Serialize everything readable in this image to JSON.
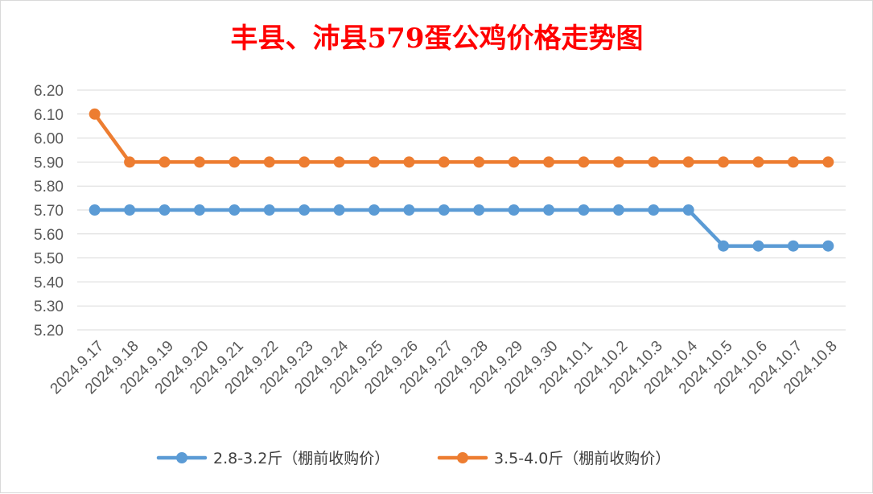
{
  "chart_data": {
    "type": "line",
    "title": "丰县、沛县579蛋公鸡价格走势图",
    "xlabel": "",
    "ylabel": "",
    "categories": [
      "2024.9.17",
      "2024.9.18",
      "2024.9.19",
      "2024.9.20",
      "2024.9.21",
      "2024.9.22",
      "2024.9.23",
      "2024.9.24",
      "2024.9.25",
      "2024.9.26",
      "2024.9.27",
      "2024.9.28",
      "2024.9.29",
      "2024.9.30",
      "2024.10.1",
      "2024.10.2",
      "2024.10.3",
      "2024.10.4",
      "2024.10.5",
      "2024.10.6",
      "2024.10.7",
      "2024.10.8"
    ],
    "y_ticks": [
      "5.20",
      "5.30",
      "5.40",
      "5.50",
      "5.60",
      "5.70",
      "5.80",
      "5.90",
      "6.00",
      "6.10",
      "6.20"
    ],
    "ylim": [
      5.2,
      6.2
    ],
    "grid": true,
    "legend_position": "bottom",
    "series": [
      {
        "name": "2.8-3.2斤（棚前收购价）",
        "color": "#5b9bd5",
        "values": [
          5.7,
          5.7,
          5.7,
          5.7,
          5.7,
          5.7,
          5.7,
          5.7,
          5.7,
          5.7,
          5.7,
          5.7,
          5.7,
          5.7,
          5.7,
          5.7,
          5.7,
          5.7,
          5.55,
          5.55,
          5.55,
          5.55
        ]
      },
      {
        "name": "3.5-4.0斤（棚前收购价）",
        "color": "#ed7d31",
        "values": [
          6.1,
          5.9,
          5.9,
          5.9,
          5.9,
          5.9,
          5.9,
          5.9,
          5.9,
          5.9,
          5.9,
          5.9,
          5.9,
          5.9,
          5.9,
          5.9,
          5.9,
          5.9,
          5.9,
          5.9,
          5.9,
          5.9
        ]
      }
    ]
  }
}
